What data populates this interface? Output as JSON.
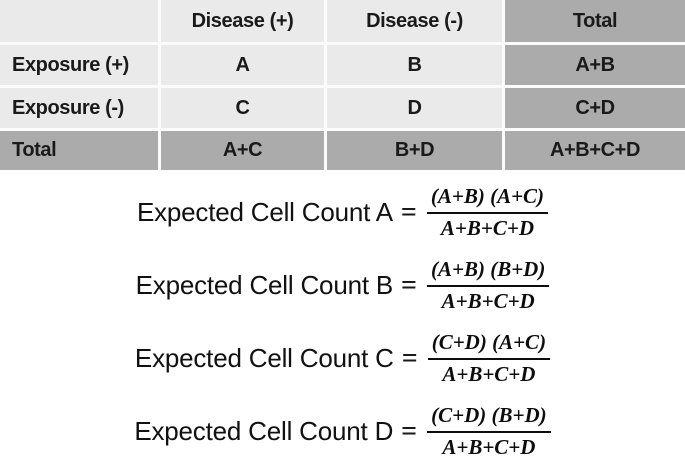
{
  "colors": {
    "cell_light": "#eaeaea",
    "cell_dark": "#ababab",
    "separator": "#fbfbfb",
    "text": "#1a1a1a",
    "background": "#ffffff"
  },
  "table": {
    "header": [
      "",
      "Disease (+)",
      "Disease (-)",
      "Total"
    ],
    "rows": [
      {
        "label": "Exposure (+)",
        "cells": [
          "A",
          "B",
          "A+B"
        ]
      },
      {
        "label": "Exposure (-)",
        "cells": [
          "C",
          "D",
          "C+D"
        ]
      },
      {
        "label": "Total",
        "cells": [
          "A+C",
          "B+D",
          "A+B+C+D"
        ]
      }
    ]
  },
  "equals_sign": "=",
  "formulas": [
    {
      "label": "Expected Cell Count A",
      "numerator": "(A+B) (A+C)",
      "denominator": "A+B+C+D"
    },
    {
      "label": "Expected Cell Count B",
      "numerator": "(A+B) (B+D)",
      "denominator": "A+B+C+D"
    },
    {
      "label": "Expected Cell Count C",
      "numerator": "(C+D) (A+C)",
      "denominator": "A+B+C+D"
    },
    {
      "label": "Expected Cell Count D",
      "numerator": "(C+D) (B+D)",
      "denominator": "A+B+C+D"
    }
  ]
}
